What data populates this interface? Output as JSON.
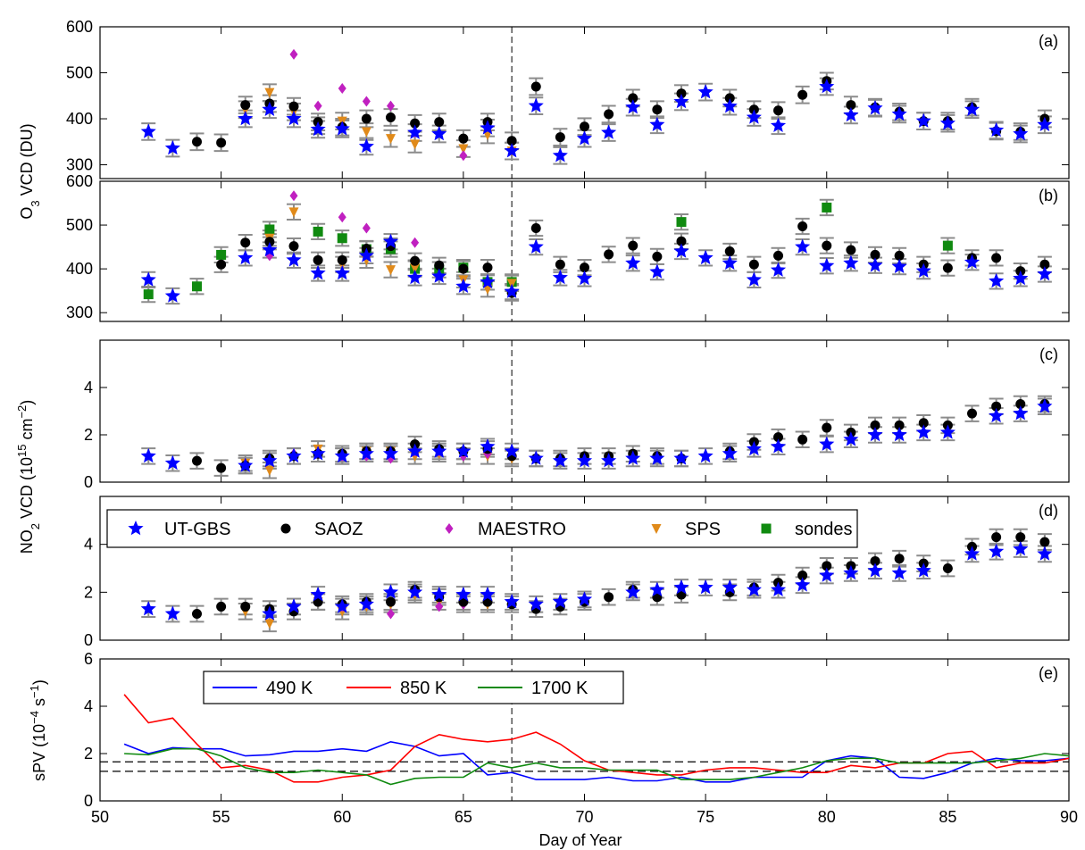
{
  "figure": {
    "xlabel": "Day of Year",
    "o3_ylabel": "O3 VCD (DU)",
    "no2_ylabel": "NO2 VCD (10^15 cm^-2)",
    "spv_ylabel": "sPV (10^-4 s^-1)",
    "xlim": [
      50,
      90
    ],
    "xticks": [
      50,
      55,
      60,
      65,
      70,
      75,
      80,
      85,
      90
    ],
    "vline_day": 67,
    "instrument_legend": [
      "UT-GBS",
      "SAOZ",
      "MAESTRO",
      "SPS",
      "sondes"
    ],
    "spv_legend": [
      "490 K",
      "850 K",
      "1700 K"
    ],
    "colors": {
      "UT-GBS": "#0000ff",
      "SAOZ": "#000000",
      "MAESTRO": "#c020c0",
      "SPS": "#e08a1a",
      "sondes": "#108a10",
      "490 K": "#0000ff",
      "850 K": "#ff0000",
      "1700 K": "#108a10"
    }
  },
  "chart_data": [
    {
      "panel": "(a)",
      "type": "scatter",
      "ylim": [
        270,
        600
      ],
      "yticks": [
        300,
        400,
        500,
        600
      ],
      "series": [
        {
          "name": "UT-GBS",
          "x": [
            52,
            53,
            56,
            57,
            58,
            59,
            60,
            61,
            63,
            64,
            66,
            67,
            68,
            69,
            70,
            71,
            72,
            73,
            74,
            75,
            76,
            77,
            78,
            80,
            81,
            82,
            83,
            84,
            85,
            86,
            87,
            88,
            89
          ],
          "y": [
            372,
            336,
            400,
            420,
            400,
            377,
            378,
            340,
            370,
            367,
            380,
            330,
            428,
            320,
            357,
            370,
            425,
            387,
            437,
            458,
            427,
            403,
            385,
            470,
            408,
            423,
            410,
            395,
            390,
            420,
            375,
            367,
            387
          ]
        },
        {
          "name": "SAOZ",
          "x": [
            54,
            55,
            56,
            57,
            58,
            59,
            60,
            61,
            62,
            63,
            64,
            65,
            66,
            67,
            68,
            69,
            70,
            71,
            72,
            73,
            74,
            76,
            77,
            78,
            79,
            80,
            81,
            82,
            83,
            84,
            85,
            86,
            87,
            88,
            89
          ],
          "y": [
            350,
            348,
            430,
            433,
            427,
            393,
            382,
            400,
            403,
            390,
            393,
            357,
            393,
            352,
            470,
            360,
            383,
            410,
            445,
            420,
            455,
            445,
            420,
            418,
            452,
            482,
            430,
            425,
            415,
            395,
            395,
            425,
            373,
            372,
            400
          ]
        },
        {
          "name": "MAESTRO",
          "x": [
            58,
            59,
            60,
            61,
            62,
            63,
            65
          ],
          "y": [
            540,
            428,
            466,
            438,
            428,
            370,
            320
          ]
        },
        {
          "name": "SPS",
          "x": [
            56,
            57,
            58,
            59,
            60,
            61,
            62,
            63,
            65,
            66,
            67
          ],
          "y": [
            420,
            457,
            415,
            385,
            395,
            372,
            357,
            345,
            335,
            365,
            330
          ]
        }
      ]
    },
    {
      "panel": "(b)",
      "type": "scatter",
      "ylim": [
        280,
        600
      ],
      "yticks": [
        300,
        400,
        500,
        600
      ],
      "series": [
        {
          "name": "UT-GBS",
          "x": [
            52,
            53,
            56,
            57,
            58,
            59,
            60,
            61,
            62,
            63,
            64,
            65,
            66,
            67,
            68,
            69,
            70,
            72,
            73,
            74,
            75,
            76,
            77,
            78,
            79,
            80,
            81,
            82,
            83,
            84,
            86,
            87,
            88,
            89
          ],
          "y": [
            375,
            338,
            425,
            443,
            420,
            390,
            390,
            430,
            462,
            380,
            383,
            360,
            370,
            348,
            450,
            380,
            378,
            413,
            393,
            440,
            425,
            413,
            375,
            397,
            450,
            407,
            413,
            408,
            405,
            395,
            415,
            372,
            378,
            388
          ]
        },
        {
          "name": "SAOZ",
          "x": [
            55,
            56,
            57,
            58,
            59,
            60,
            61,
            62,
            63,
            64,
            65,
            66,
            67,
            68,
            69,
            70,
            71,
            72,
            73,
            74,
            76,
            77,
            78,
            79,
            80,
            81,
            82,
            83,
            84,
            85,
            86,
            87,
            88,
            89
          ],
          "y": [
            410,
            460,
            462,
            452,
            420,
            420,
            446,
            452,
            418,
            408,
            400,
            403,
            345,
            493,
            410,
            403,
            433,
            453,
            428,
            463,
            440,
            410,
            430,
            497,
            453,
            443,
            432,
            430,
            410,
            402,
            425,
            425,
            395,
            410
          ]
        },
        {
          "name": "MAESTRO",
          "x": [
            57,
            58,
            60,
            61,
            62,
            63
          ],
          "y": [
            430,
            567,
            518,
            493,
            462,
            460
          ]
        },
        {
          "name": "SPS",
          "x": [
            57,
            58,
            60,
            61,
            62,
            63,
            65,
            66,
            67
          ],
          "y": [
            470,
            530,
            410,
            420,
            398,
            402,
            375,
            354,
            367
          ]
        },
        {
          "name": "sondes",
          "x": [
            52,
            54,
            55,
            57,
            59,
            60,
            61,
            62,
            63,
            64,
            65,
            66,
            67,
            74,
            80,
            85
          ],
          "y": [
            342,
            360,
            432,
            490,
            485,
            470,
            445,
            445,
            400,
            398,
            403,
            370,
            370,
            507,
            540,
            453
          ]
        }
      ]
    },
    {
      "panel": "(c)",
      "type": "scatter",
      "ylim": [
        0,
        6
      ],
      "yticks": [
        0,
        2,
        4
      ],
      "series": [
        {
          "name": "UT-GBS",
          "x": [
            52,
            53,
            56,
            57,
            58,
            59,
            60,
            61,
            62,
            63,
            64,
            65,
            66,
            67,
            68,
            69,
            70,
            71,
            72,
            73,
            74,
            75,
            76,
            77,
            78,
            80,
            81,
            82,
            83,
            84,
            85,
            87,
            88,
            89
          ],
          "y": [
            1.1,
            0.8,
            0.7,
            0.9,
            1.1,
            1.2,
            1.1,
            1.2,
            1.2,
            1.3,
            1.3,
            1.3,
            1.5,
            1.3,
            1.0,
            0.9,
            0.9,
            0.9,
            1.0,
            1.0,
            1.0,
            1.1,
            1.2,
            1.4,
            1.5,
            1.6,
            1.8,
            2.0,
            2.0,
            2.1,
            2.1,
            2.8,
            2.9,
            3.2
          ]
        },
        {
          "name": "SAOZ",
          "x": [
            54,
            55,
            56,
            57,
            58,
            59,
            60,
            61,
            62,
            63,
            64,
            65,
            66,
            67,
            68,
            69,
            70,
            71,
            72,
            73,
            74,
            76,
            77,
            78,
            79,
            80,
            81,
            82,
            83,
            84,
            85,
            86,
            87,
            88,
            89
          ],
          "y": [
            0.9,
            0.6,
            0.7,
            1.0,
            1.1,
            1.2,
            1.2,
            1.3,
            1.3,
            1.6,
            1.4,
            1.3,
            1.4,
            1.1,
            1.0,
            1.0,
            1.1,
            1.1,
            1.2,
            1.1,
            1.0,
            1.3,
            1.7,
            1.9,
            1.8,
            2.3,
            2.1,
            2.4,
            2.4,
            2.5,
            2.4,
            2.9,
            3.2,
            3.3,
            3.3
          ]
        },
        {
          "name": "MAESTRO",
          "x": [
            58,
            59,
            60,
            61,
            62,
            63,
            64,
            65,
            66
          ],
          "y": [
            1.2,
            1.2,
            1.1,
            1.1,
            1.0,
            1.3,
            1.3,
            1.1,
            1.2
          ]
        },
        {
          "name": "SPS",
          "x": [
            56,
            57,
            59,
            60,
            61,
            62,
            63,
            64,
            65,
            66,
            67
          ],
          "y": [
            0.8,
            0.5,
            1.4,
            1.1,
            1.3,
            1.3,
            1.1,
            1.2,
            1.1,
            1.1,
            1.0
          ]
        }
      ]
    },
    {
      "panel": "(d)",
      "type": "scatter",
      "ylim": [
        0,
        6
      ],
      "yticks": [
        0,
        2,
        4
      ],
      "series": [
        {
          "name": "UT-GBS",
          "x": [
            52,
            53,
            57,
            58,
            59,
            60,
            61,
            62,
            63,
            64,
            65,
            66,
            67,
            68,
            69,
            70,
            72,
            73,
            74,
            75,
            76,
            77,
            78,
            79,
            80,
            81,
            82,
            83,
            84,
            86,
            87,
            88,
            89
          ],
          "y": [
            1.3,
            1.1,
            1.1,
            1.4,
            1.9,
            1.4,
            1.5,
            2.0,
            2.0,
            1.9,
            1.9,
            1.9,
            1.6,
            1.5,
            1.6,
            1.7,
            2.0,
            2.1,
            2.2,
            2.2,
            2.2,
            2.1,
            2.1,
            2.3,
            2.7,
            2.8,
            2.9,
            2.8,
            2.9,
            3.6,
            3.7,
            3.8,
            3.6
          ]
        },
        {
          "name": "SAOZ",
          "x": [
            54,
            55,
            56,
            57,
            58,
            59,
            60,
            61,
            62,
            63,
            64,
            65,
            66,
            67,
            68,
            69,
            70,
            71,
            72,
            73,
            74,
            76,
            77,
            78,
            79,
            80,
            81,
            82,
            83,
            84,
            85,
            86,
            87,
            88,
            89
          ],
          "y": [
            1.1,
            1.4,
            1.4,
            1.3,
            1.2,
            1.6,
            1.5,
            1.6,
            1.6,
            2.1,
            1.8,
            1.6,
            1.6,
            1.5,
            1.3,
            1.4,
            1.6,
            1.8,
            2.1,
            1.8,
            1.9,
            2.0,
            2.2,
            2.4,
            2.7,
            3.1,
            3.1,
            3.3,
            3.4,
            3.2,
            3.0,
            3.9,
            4.3,
            4.3,
            4.1
          ]
        },
        {
          "name": "MAESTRO",
          "x": [
            59,
            60,
            62,
            64,
            65,
            66
          ],
          "y": [
            1.7,
            1.4,
            1.1,
            1.4,
            1.5,
            1.9
          ]
        },
        {
          "name": "SPS",
          "x": [
            56,
            57,
            59,
            60,
            61,
            62,
            63,
            64,
            65,
            66
          ],
          "y": [
            1.2,
            0.7,
            1.6,
            1.2,
            1.4,
            1.5,
            1.9,
            1.6,
            1.5,
            1.5
          ]
        }
      ]
    },
    {
      "panel": "(e)",
      "type": "line",
      "ylim": [
        0,
        6
      ],
      "yticks": [
        0,
        2,
        4,
        6
      ],
      "hlines": [
        1.25,
        1.65
      ],
      "series": [
        {
          "name": "490 K",
          "x": [
            51,
            52,
            53,
            54,
            55,
            56,
            57,
            58,
            59,
            60,
            61,
            62,
            63,
            64,
            65,
            66,
            67,
            68,
            69,
            70,
            71,
            72,
            73,
            74,
            75,
            76,
            77,
            78,
            79,
            80,
            81,
            82,
            83,
            84,
            85,
            86,
            87,
            88,
            89,
            90
          ],
          "y": [
            2.4,
            2.0,
            2.25,
            2.2,
            2.2,
            1.9,
            1.95,
            2.1,
            2.1,
            2.2,
            2.1,
            2.5,
            2.3,
            1.9,
            2.0,
            1.1,
            1.2,
            0.9,
            0.9,
            0.9,
            1.0,
            0.85,
            0.85,
            1.0,
            0.8,
            0.8,
            1.0,
            1.0,
            1.0,
            1.7,
            1.9,
            1.8,
            1.0,
            0.95,
            1.2,
            1.6,
            1.8,
            1.7,
            1.7,
            1.8
          ]
        },
        {
          "name": "850 K",
          "x": [
            51,
            52,
            53,
            54,
            55,
            56,
            57,
            58,
            59,
            60,
            61,
            62,
            63,
            64,
            65,
            66,
            67,
            68,
            69,
            70,
            71,
            72,
            73,
            74,
            75,
            76,
            77,
            78,
            79,
            80,
            81,
            82,
            83,
            84,
            85,
            86,
            87,
            88,
            89,
            90
          ],
          "y": [
            4.5,
            3.3,
            3.5,
            2.4,
            1.4,
            1.5,
            1.3,
            0.8,
            0.8,
            1.0,
            1.1,
            1.3,
            2.3,
            2.8,
            2.6,
            2.5,
            2.6,
            2.9,
            2.4,
            1.7,
            1.3,
            1.2,
            1.1,
            1.1,
            1.3,
            1.4,
            1.4,
            1.3,
            1.2,
            1.2,
            1.5,
            1.4,
            1.6,
            1.6,
            2.0,
            2.1,
            1.4,
            1.6,
            1.6,
            1.8
          ]
        },
        {
          "name": "1700 K",
          "x": [
            51,
            52,
            53,
            54,
            55,
            56,
            57,
            58,
            59,
            60,
            61,
            62,
            63,
            64,
            65,
            66,
            67,
            68,
            69,
            70,
            71,
            72,
            73,
            74,
            75,
            76,
            77,
            78,
            79,
            80,
            81,
            82,
            83,
            84,
            85,
            86,
            87,
            88,
            89,
            90
          ],
          "y": [
            2.0,
            1.95,
            2.2,
            2.2,
            1.9,
            1.4,
            1.2,
            1.2,
            1.3,
            1.2,
            1.1,
            0.7,
            0.95,
            1.0,
            1.0,
            1.6,
            1.4,
            1.6,
            1.4,
            1.4,
            1.3,
            1.3,
            1.3,
            0.9,
            0.9,
            0.9,
            1.0,
            1.2,
            1.4,
            1.7,
            1.8,
            1.8,
            1.6,
            1.6,
            1.6,
            1.6,
            1.7,
            1.8,
            2.0,
            1.9
          ]
        }
      ]
    }
  ]
}
